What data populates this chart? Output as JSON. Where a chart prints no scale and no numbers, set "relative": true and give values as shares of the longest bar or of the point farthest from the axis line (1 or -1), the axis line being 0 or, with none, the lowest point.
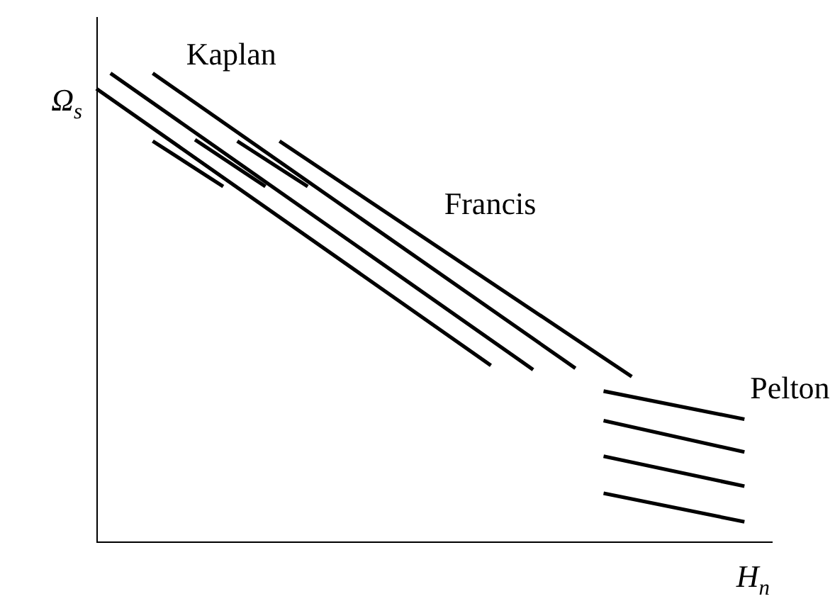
{
  "chart_data": {
    "type": "line",
    "relative": true,
    "xlabel": "H$_{n}$",
    "ylabel": "Ω$_{s}$",
    "legend": false,
    "marker": "none",
    "line_style": "solid",
    "categories": [
      null,
      null,
      null,
      null,
      null,
      null,
      null,
      null,
      null,
      null,
      null,
      null,
      null,
      null,
      null,
      null,
      null,
      null,
      null,
      null,
      null,
      null,
      null,
      null,
      null,
      null,
      null,
      null,
      null,
      null,
      null,
      null,
      null,
      null,
      null,
      null,
      null,
      null,
      null,
      null,
      null,
      null,
      null,
      null,
      null,
      null,
      null,
      null,
      null
    ],
    "series": [
      {
        "color": "#000000",
        "values": [
          0.967,
          null,
          null,
          null,
          null,
          null,
          null,
          null,
          null,
          null,
          null,
          null,
          null,
          null,
          null,
          null,
          null,
          null,
          null,
          null,
          null,
          null,
          null,
          null,
          null,
          null,
          null,
          null,
          0.376,
          null,
          null,
          null,
          null,
          null,
          null,
          null,
          null,
          null,
          null,
          null,
          null,
          null,
          null,
          null,
          null,
          null,
          null,
          null,
          null
        ]
      },
      {
        "color": "#000000",
        "values": [
          null,
          1.0,
          null,
          null,
          null,
          null,
          null,
          null,
          null,
          null,
          null,
          null,
          null,
          null,
          null,
          null,
          null,
          null,
          null,
          null,
          null,
          null,
          null,
          null,
          null,
          null,
          null,
          null,
          null,
          null,
          null,
          0.367,
          null,
          null,
          null,
          null,
          null,
          null,
          null,
          null,
          null,
          null,
          null,
          null,
          null,
          null,
          null,
          null,
          null
        ]
      },
      {
        "color": "#000000",
        "values": [
          null,
          null,
          null,
          null,
          1.0,
          null,
          null,
          null,
          null,
          null,
          null,
          null,
          null,
          null,
          null,
          null,
          null,
          null,
          null,
          null,
          null,
          null,
          null,
          null,
          null,
          null,
          null,
          null,
          null,
          null,
          null,
          null,
          null,
          null,
          0.37,
          null,
          null,
          null,
          null,
          null,
          null,
          null,
          null,
          null,
          null,
          null,
          null,
          null,
          null
        ]
      },
      {
        "color": "#000000",
        "values": [
          null,
          null,
          null,
          null,
          null,
          null,
          null,
          null,
          null,
          null,
          null,
          null,
          null,
          0.855,
          null,
          null,
          null,
          null,
          null,
          null,
          null,
          null,
          null,
          null,
          null,
          null,
          null,
          null,
          null,
          null,
          null,
          null,
          null,
          null,
          null,
          null,
          null,
          null,
          0.352,
          null,
          null,
          null,
          null,
          null,
          null,
          null,
          null,
          null,
          null
        ]
      },
      {
        "color": "#000000",
        "values": [
          null,
          null,
          null,
          null,
          0.855,
          null,
          null,
          null,
          null,
          0.758,
          null,
          null,
          null,
          null,
          null,
          null,
          null,
          null,
          null,
          null,
          null,
          null,
          null,
          null,
          null,
          null,
          null,
          null,
          null,
          null,
          null,
          null,
          null,
          null,
          null,
          null,
          null,
          null,
          null,
          null,
          null,
          null,
          null,
          null,
          null,
          null,
          null,
          null,
          null
        ]
      },
      {
        "color": "#000000",
        "values": [
          null,
          null,
          null,
          null,
          null,
          null,
          null,
          0.858,
          null,
          null,
          null,
          null,
          0.758,
          null,
          null,
          null,
          null,
          null,
          null,
          null,
          null,
          null,
          null,
          null,
          null,
          null,
          null,
          null,
          null,
          null,
          null,
          null,
          null,
          null,
          null,
          null,
          null,
          null,
          null,
          null,
          null,
          null,
          null,
          null,
          null,
          null,
          null,
          null,
          null
        ]
      },
      {
        "color": "#000000",
        "values": [
          null,
          null,
          null,
          null,
          null,
          null,
          null,
          null,
          null,
          null,
          0.855,
          null,
          null,
          null,
          null,
          0.758,
          null,
          null,
          null,
          null,
          null,
          null,
          null,
          null,
          null,
          null,
          null,
          null,
          null,
          null,
          null,
          null,
          null,
          null,
          null,
          null,
          null,
          null,
          null,
          null,
          null,
          null,
          null,
          null,
          null,
          null,
          null,
          null,
          null
        ]
      },
      {
        "color": "#000000",
        "values": [
          null,
          null,
          null,
          null,
          null,
          null,
          null,
          null,
          null,
          null,
          null,
          null,
          null,
          null,
          null,
          null,
          null,
          null,
          null,
          null,
          null,
          null,
          null,
          null,
          null,
          null,
          null,
          null,
          null,
          null,
          null,
          null,
          null,
          null,
          null,
          null,
          0.321,
          null,
          null,
          null,
          null,
          null,
          null,
          null,
          null,
          null,
          0.261,
          null,
          null
        ]
      },
      {
        "color": "#000000",
        "values": [
          null,
          null,
          null,
          null,
          null,
          null,
          null,
          null,
          null,
          null,
          null,
          null,
          null,
          null,
          null,
          null,
          null,
          null,
          null,
          null,
          null,
          null,
          null,
          null,
          null,
          null,
          null,
          null,
          null,
          null,
          null,
          null,
          null,
          null,
          null,
          null,
          0.258,
          null,
          null,
          null,
          null,
          null,
          null,
          null,
          null,
          null,
          0.191,
          null,
          null
        ]
      },
      {
        "color": "#000000",
        "values": [
          null,
          null,
          null,
          null,
          null,
          null,
          null,
          null,
          null,
          null,
          null,
          null,
          null,
          null,
          null,
          null,
          null,
          null,
          null,
          null,
          null,
          null,
          null,
          null,
          null,
          null,
          null,
          null,
          null,
          null,
          null,
          null,
          null,
          null,
          null,
          null,
          0.182,
          null,
          null,
          null,
          null,
          null,
          null,
          null,
          null,
          null,
          0.118,
          null,
          null
        ]
      },
      {
        "color": "#000000",
        "values": [
          null,
          null,
          null,
          null,
          null,
          null,
          null,
          null,
          null,
          null,
          null,
          null,
          null,
          null,
          null,
          null,
          null,
          null,
          null,
          null,
          null,
          null,
          null,
          null,
          null,
          null,
          null,
          null,
          null,
          null,
          null,
          null,
          null,
          null,
          null,
          null,
          0.103,
          null,
          null,
          null,
          null,
          null,
          null,
          null,
          null,
          null,
          0.042,
          null,
          null
        ]
      }
    ],
    "annotations": [
      "Kaplan",
      "Francis",
      "Pelton"
    ]
  }
}
